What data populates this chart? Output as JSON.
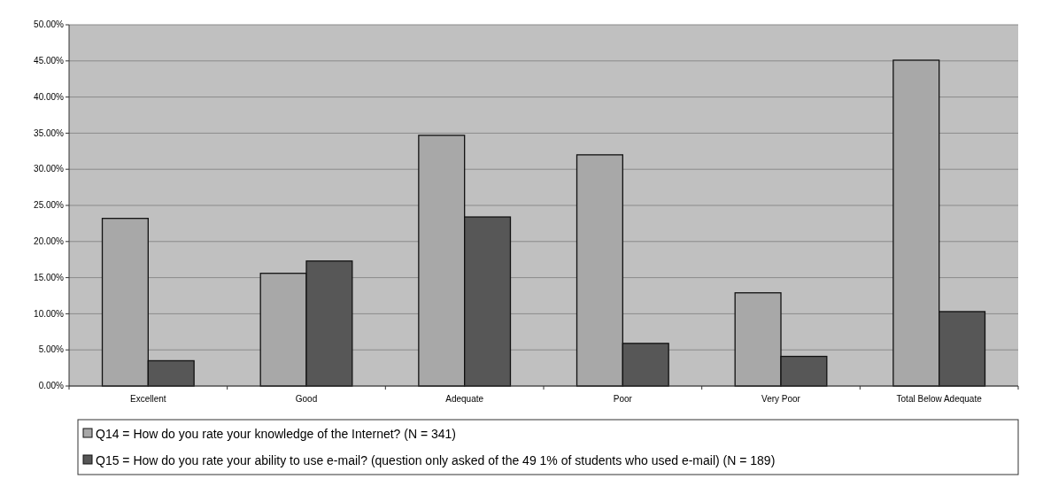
{
  "chart_data": {
    "type": "bar",
    "categories": [
      "Excellent",
      "Good",
      "Adequate",
      "Poor",
      "Very Poor",
      "Total Below Adequate"
    ],
    "series": [
      {
        "name": "Q14 = How do you rate your knowledge of the Internet? (N = 341)",
        "color": "#a8a8a8",
        "values": [
          23.2,
          15.6,
          34.7,
          32.0,
          12.9,
          45.1
        ]
      },
      {
        "name": "Q15 = How do you rate your ability to use e-mail? (question only asked of the 49 1% of students who used e-mail)  (N = 189)",
        "color": "#575757",
        "values": [
          3.5,
          17.3,
          23.4,
          5.9,
          4.1,
          10.3
        ]
      }
    ],
    "ylim": [
      0,
      50
    ],
    "yticks": [
      {
        "value": 0,
        "label": "0.00%"
      },
      {
        "value": 5,
        "label": "5.00%"
      },
      {
        "value": 10,
        "label": "10.00%"
      },
      {
        "value": 15,
        "label": "15.00%"
      },
      {
        "value": 20,
        "label": "20.00%"
      },
      {
        "value": 25,
        "label": "25.00%"
      },
      {
        "value": 30,
        "label": "30.00%"
      },
      {
        "value": 35,
        "label": "35.00%"
      },
      {
        "value": 40,
        "label": "40.00%"
      },
      {
        "value": 45,
        "label": "45.00%"
      },
      {
        "value": 50,
        "label": "50.00%"
      }
    ],
    "grid": "y",
    "legend": "bottom"
  }
}
